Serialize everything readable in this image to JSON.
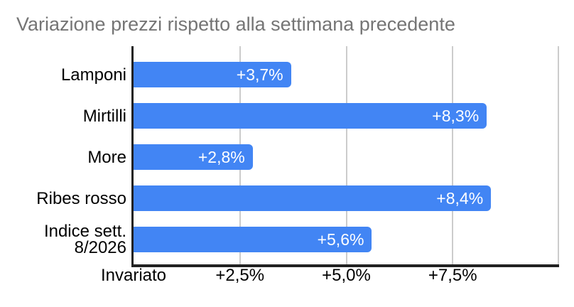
{
  "title": "Variazione prezzi rispetto alla settimana precedente",
  "chart_data": {
    "type": "bar",
    "orientation": "horizontal",
    "title": "Variazione prezzi rispetto alla settimana precedente",
    "categories": [
      "Lamponi",
      "Mirtilli",
      "More",
      "Ribes rosso",
      "Indice sett.\n8/2026"
    ],
    "values": [
      3.7,
      8.3,
      2.8,
      8.4,
      5.6
    ],
    "value_labels": [
      "+3,7%",
      "+8,3%",
      "+2,8%",
      "+8,4%",
      "+5,6%"
    ],
    "x_axis": {
      "range": [
        0,
        10
      ],
      "gridline_values": [
        2.5,
        5.0,
        7.5,
        10
      ],
      "ticks": [
        {
          "value": 0,
          "label": "Invariato"
        },
        {
          "value": 2.5,
          "label": "+2,5%"
        },
        {
          "value": 5.0,
          "label": "+5,0%"
        },
        {
          "value": 7.5,
          "label": "+7,5%"
        }
      ]
    },
    "legend": "none",
    "grid": true,
    "colors": {
      "bar": "#4285f4",
      "value_label": "#ffffff",
      "title": "#757575",
      "axis_text": "#000000",
      "gridline": "#cccccc",
      "axis_line": "#212121"
    }
  }
}
